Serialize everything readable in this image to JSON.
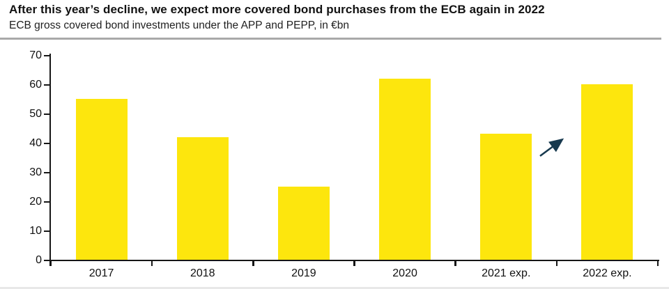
{
  "header": {
    "title": "After this year’s decline, we expect more covered bond purchases from the ECB again in 2022",
    "subtitle": "ECB gross covered bond investments under the APP and PEPP, in €bn"
  },
  "chart_data": {
    "type": "bar",
    "title": "After this year’s decline, we expect more covered bond purchases from the ECB again in 2022",
    "subtitle": "ECB gross covered bond investments under the APP and PEPP, in €bn",
    "categories": [
      "2017",
      "2018",
      "2019",
      "2020",
      "2021 exp.",
      "2022 exp."
    ],
    "values": [
      55,
      42,
      25,
      62,
      43,
      60
    ],
    "xlabel": "",
    "ylabel": "",
    "ylim": [
      0,
      70
    ],
    "yticks": [
      0,
      10,
      20,
      30,
      40,
      50,
      60,
      70
    ],
    "grid": false,
    "legend": null,
    "bar_color": "#fde60d",
    "annotation": {
      "type": "up-right-arrow",
      "meaning": "expected increase in 2022",
      "color": "#17394e"
    }
  },
  "colors": {
    "text": "#111111",
    "axis": "#161616",
    "divider": "#a9a9a9",
    "bottom_edge": "#e8e8e8",
    "background": "#ffffff"
  }
}
